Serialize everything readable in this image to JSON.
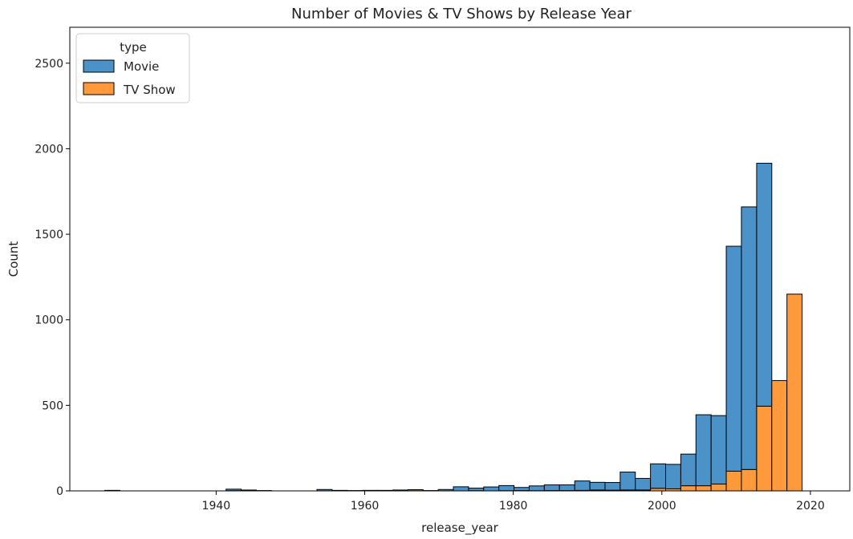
{
  "chart_data": {
    "type": "bar",
    "stacked": true,
    "title": "Number of Movies & TV Shows by Release Year",
    "xlabel": "release_year",
    "ylabel": "Count",
    "xlim": [
      1920.3,
      1925.3
    ],
    "ylim": [
      0,
      2710
    ],
    "x_ticks": [
      1940,
      1960,
      1980,
      2000,
      2020
    ],
    "y_ticks": [
      0,
      500,
      1000,
      1500,
      2000,
      2500
    ],
    "grid": false,
    "legend": {
      "title": "type",
      "placement": "top-left",
      "entries": [
        "Movie",
        "TV Show"
      ]
    },
    "bin_edges": [
      1925.0,
      1927.04,
      1929.08,
      1931.12,
      1933.16,
      1935.2,
      1937.24,
      1939.29,
      1941.33,
      1943.37,
      1945.41,
      1947.45,
      1949.49,
      1951.53,
      1953.57,
      1955.61,
      1957.65,
      1959.69,
      1961.73,
      1963.78,
      1965.82,
      1967.86,
      1969.9,
      1971.94,
      1973.98,
      1976.02,
      1978.06,
      1980.1,
      1982.14,
      1984.18,
      1986.22,
      1988.27,
      1990.31,
      1992.35,
      1994.39,
      1996.43,
      1998.47,
      2000.51,
      2002.55,
      2004.59,
      2006.63,
      2008.67,
      2010.71,
      2012.76,
      2014.8,
      2016.84,
      2018.88,
      2020.92
    ],
    "series": [
      {
        "name": "TV Show",
        "color": "#ff9a3c",
        "values": [
          1,
          0,
          0,
          0,
          0,
          0,
          0,
          0,
          1,
          0,
          0,
          0,
          0,
          0,
          0,
          0,
          0,
          0,
          0,
          0,
          0,
          0,
          0,
          0,
          1,
          0,
          1,
          2,
          1,
          2,
          2,
          3,
          5,
          4,
          5,
          5,
          15,
          12,
          30,
          30,
          40,
          115,
          125,
          495,
          645,
          1150,
          0
        ]
      },
      {
        "name": "Movie",
        "color": "#4b92c8",
        "values": [
          2,
          0,
          0,
          0,
          0,
          0,
          0,
          0,
          9,
          5,
          2,
          0,
          0,
          0,
          8,
          3,
          2,
          3,
          3,
          5,
          7,
          2,
          8,
          24,
          15,
          23,
          30,
          18,
          28,
          33,
          33,
          55,
          45,
          45,
          105,
          68,
          143,
          143,
          185,
          415,
          400,
          1315,
          1535,
          1420,
          0,
          0,
          0
        ]
      }
    ]
  }
}
